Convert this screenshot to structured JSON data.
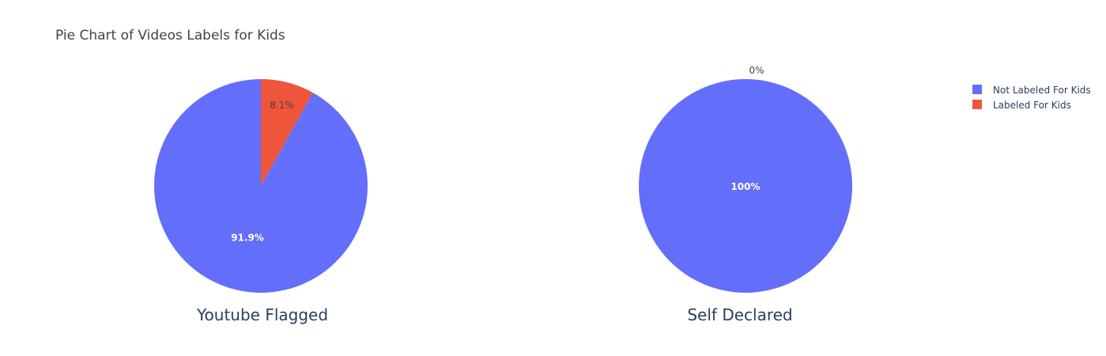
{
  "chart_data": {
    "type": "pie",
    "title": "Pie Chart of Videos Labels for Kids",
    "colors": {
      "Not Labeled For Kids": "#636efa",
      "Labeled For Kids": "#ef553b"
    },
    "legend": {
      "placement": "top-right",
      "entries": [
        "Not Labeled For Kids",
        "Labeled For Kids"
      ]
    },
    "pies": [
      {
        "label": "Youtube Flagged",
        "slices": [
          {
            "name": "Not Labeled For Kids",
            "value": 91.9,
            "text": "91.9%"
          },
          {
            "name": "Labeled For Kids",
            "value": 8.1,
            "text": "8.1%"
          }
        ]
      },
      {
        "label": "Self Declared",
        "slices": [
          {
            "name": "Not Labeled For Kids",
            "value": 100,
            "text": "100%"
          },
          {
            "name": "Labeled For Kids",
            "value": 0,
            "text": "0%"
          }
        ]
      }
    ]
  }
}
